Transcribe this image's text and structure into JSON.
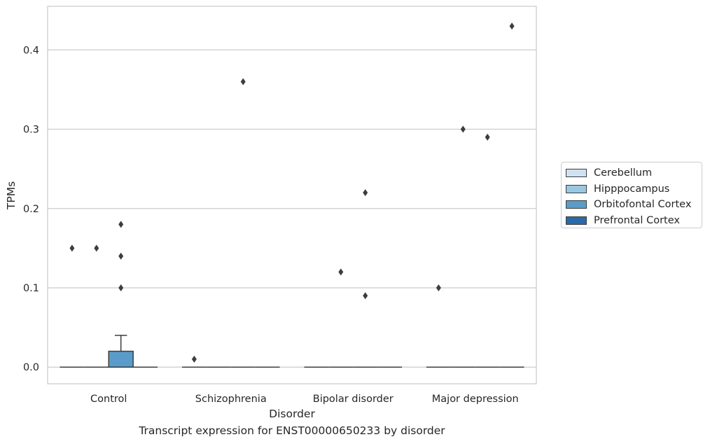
{
  "chart_data": {
    "type": "box",
    "caption": "Transcript expression for ENST00000650233 by disorder",
    "xlabel": "Disorder",
    "ylabel": "TPMs",
    "ylim": [
      -0.021,
      0.455
    ],
    "yticks": [
      0.0,
      0.1,
      0.2,
      0.3,
      0.4
    ],
    "ytick_labels": [
      "0.0",
      "0.1",
      "0.2",
      "0.3",
      "0.4"
    ],
    "grid": true,
    "legend_position": "right-outside",
    "categories": [
      "Control",
      "Schizophrenia",
      "Bipolar disorder",
      "Major depression"
    ],
    "series": [
      {
        "name": "Cerebellum",
        "color": "#d0e1f2",
        "boxes": [
          {
            "q1": 0,
            "median": 0,
            "q3": 0,
            "whislo": 0,
            "whishi": 0,
            "fliers": [
              0.15
            ]
          },
          {
            "q1": 0,
            "median": 0,
            "q3": 0,
            "whislo": 0,
            "whishi": 0,
            "fliers": [
              0.01
            ]
          },
          {
            "q1": 0,
            "median": 0,
            "q3": 0,
            "whislo": 0,
            "whishi": 0,
            "fliers": []
          },
          {
            "q1": 0,
            "median": 0,
            "q3": 0,
            "whislo": 0,
            "whishi": 0,
            "fliers": [
              0.1
            ]
          }
        ]
      },
      {
        "name": "Hipppocampus",
        "color": "#9ac8e0",
        "boxes": [
          {
            "q1": 0,
            "median": 0,
            "q3": 0,
            "whislo": 0,
            "whishi": 0,
            "fliers": [
              0.15
            ]
          },
          {
            "q1": 0,
            "median": 0,
            "q3": 0,
            "whislo": 0,
            "whishi": 0,
            "fliers": []
          },
          {
            "q1": 0,
            "median": 0,
            "q3": 0,
            "whislo": 0,
            "whishi": 0,
            "fliers": [
              0.12
            ]
          },
          {
            "q1": 0,
            "median": 0,
            "q3": 0,
            "whislo": 0,
            "whishi": 0,
            "fliers": [
              0.3
            ]
          }
        ]
      },
      {
        "name": "Orbitofontal Cortex",
        "color": "#5a9cc9",
        "boxes": [
          {
            "q1": 0,
            "median": 0,
            "q3": 0.02,
            "whislo": 0,
            "whishi": 0.04,
            "fliers": [
              0.1,
              0.14,
              0.18
            ]
          },
          {
            "q1": 0,
            "median": 0,
            "q3": 0,
            "whislo": 0,
            "whishi": 0,
            "fliers": [
              0.36
            ]
          },
          {
            "q1": 0,
            "median": 0,
            "q3": 0,
            "whislo": 0,
            "whishi": 0,
            "fliers": [
              0.09,
              0.22
            ]
          },
          {
            "q1": 0,
            "median": 0,
            "q3": 0,
            "whislo": 0,
            "whishi": 0,
            "fliers": [
              0.29
            ]
          }
        ]
      },
      {
        "name": "Prefrontal Cortex",
        "color": "#2b6aa8",
        "boxes": [
          {
            "q1": 0,
            "median": 0,
            "q3": 0,
            "whislo": 0,
            "whishi": 0,
            "fliers": []
          },
          {
            "q1": 0,
            "median": 0,
            "q3": 0,
            "whislo": 0,
            "whishi": 0,
            "fliers": []
          },
          {
            "q1": 0,
            "median": 0,
            "q3": 0,
            "whislo": 0,
            "whishi": 0,
            "fliers": []
          },
          {
            "q1": 0,
            "median": 0,
            "q3": 0,
            "whislo": 0,
            "whishi": 0,
            "fliers": [
              0.43
            ]
          }
        ]
      }
    ]
  }
}
